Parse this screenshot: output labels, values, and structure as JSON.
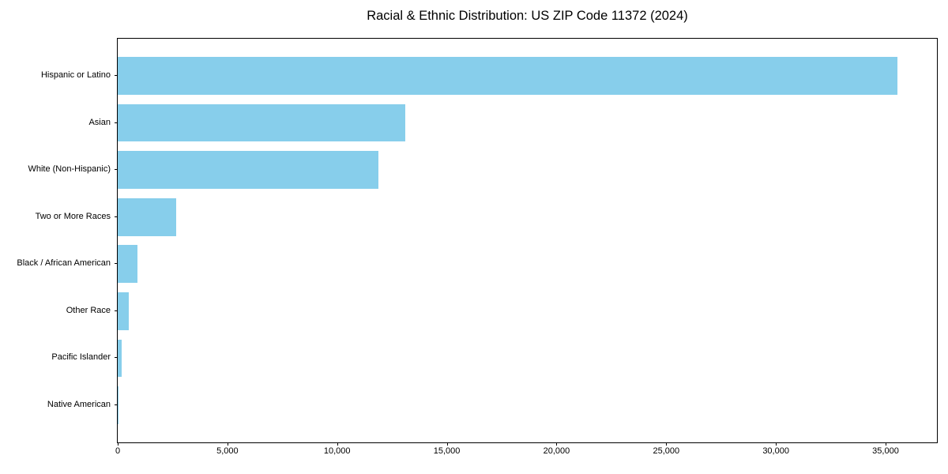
{
  "chart_data": {
    "type": "bar",
    "orientation": "horizontal",
    "title": "Racial & Ethnic Distribution: US ZIP Code 11372 (2024)",
    "categories": [
      "Hispanic or Latino",
      "Asian",
      "White (Non-Hispanic)",
      "Two or More Races",
      "Black / African American",
      "Other Race",
      "Pacific Islander",
      "Native American"
    ],
    "values": [
      35550,
      13100,
      11900,
      2650,
      900,
      510,
      170,
      25
    ],
    "xlabel": "",
    "ylabel": "",
    "xlim": [
      0,
      37340
    ],
    "x_ticks": [
      0,
      5000,
      10000,
      15000,
      20000,
      25000,
      30000,
      35000
    ],
    "x_tick_labels": [
      "0",
      "5,000",
      "10,000",
      "15,000",
      "20,000",
      "25,000",
      "30,000",
      "35,000"
    ],
    "bar_color": "#87CEEB",
    "axis_color": "#000000",
    "background_color": "#FFFFFF",
    "grid": false,
    "legend": null,
    "bar_height_fraction": 0.8
  }
}
